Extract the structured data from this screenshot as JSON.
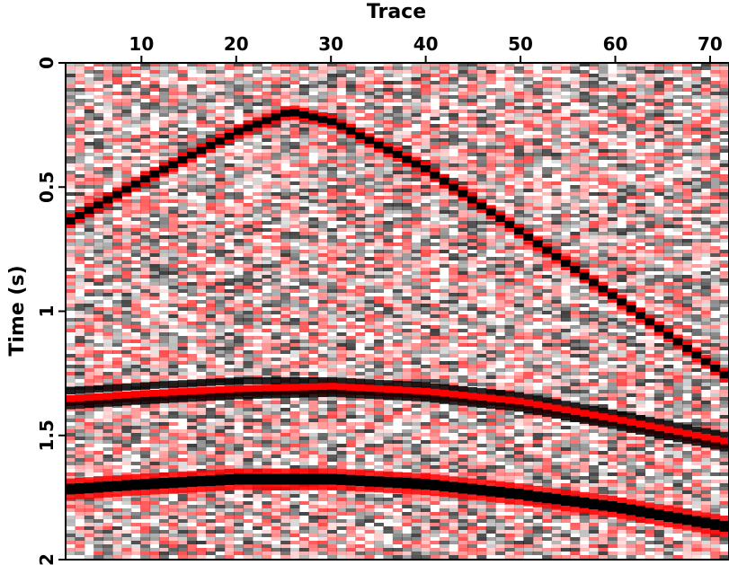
{
  "chart_data": {
    "type": "heatmap",
    "title": "",
    "xlabel": "Trace",
    "ylabel": "Time (s)",
    "x_axis_position": "top",
    "xlim": [
      2,
      72
    ],
    "ylim": [
      0,
      2
    ],
    "y_inverted": true,
    "xticks": [
      10,
      20,
      30,
      40,
      50,
      60,
      70
    ],
    "yticks": [
      0,
      0.5,
      1,
      1.5,
      2
    ],
    "ytick_labels": [
      "0",
      "0.5",
      "1",
      "1.5",
      "2"
    ],
    "colormap": {
      "negative": "#ff0000",
      "zero": "#ffffff",
      "positive": "#000000"
    },
    "noise": "random background noise over whole section",
    "events": [
      {
        "shape": "diffraction",
        "apex_trace": 25.5,
        "apex_time": 0.2,
        "x": [
          2,
          10,
          20,
          25.5,
          30,
          40,
          50,
          60,
          72
        ],
        "t": [
          0.64,
          0.47,
          0.28,
          0.2,
          0.24,
          0.43,
          0.68,
          0.94,
          1.26
        ],
        "polarity": "black center with red flanks"
      },
      {
        "shape": "hyperbola",
        "x": [
          2,
          10,
          20,
          30,
          40,
          50,
          60,
          72
        ],
        "t": [
          1.32,
          1.3,
          1.28,
          1.28,
          1.3,
          1.34,
          1.41,
          1.5
        ],
        "polarity": "black"
      },
      {
        "shape": "hyperbola",
        "x": [
          2,
          10,
          20,
          30,
          40,
          50,
          60,
          72
        ],
        "t": [
          1.36,
          1.34,
          1.32,
          1.31,
          1.33,
          1.37,
          1.44,
          1.53
        ],
        "polarity": "red (strong)"
      },
      {
        "shape": "hyperbola",
        "x": [
          2,
          10,
          20,
          30,
          40,
          50,
          60,
          72
        ],
        "t": [
          1.38,
          1.36,
          1.34,
          1.33,
          1.35,
          1.39,
          1.46,
          1.55
        ],
        "polarity": "black"
      },
      {
        "shape": "hyperbola",
        "x": [
          2,
          10,
          20,
          30,
          40,
          50,
          60,
          72
        ],
        "t": [
          1.72,
          1.7,
          1.68,
          1.68,
          1.7,
          1.74,
          1.79,
          1.87
        ],
        "polarity": "black with red flanks"
      }
    ]
  }
}
